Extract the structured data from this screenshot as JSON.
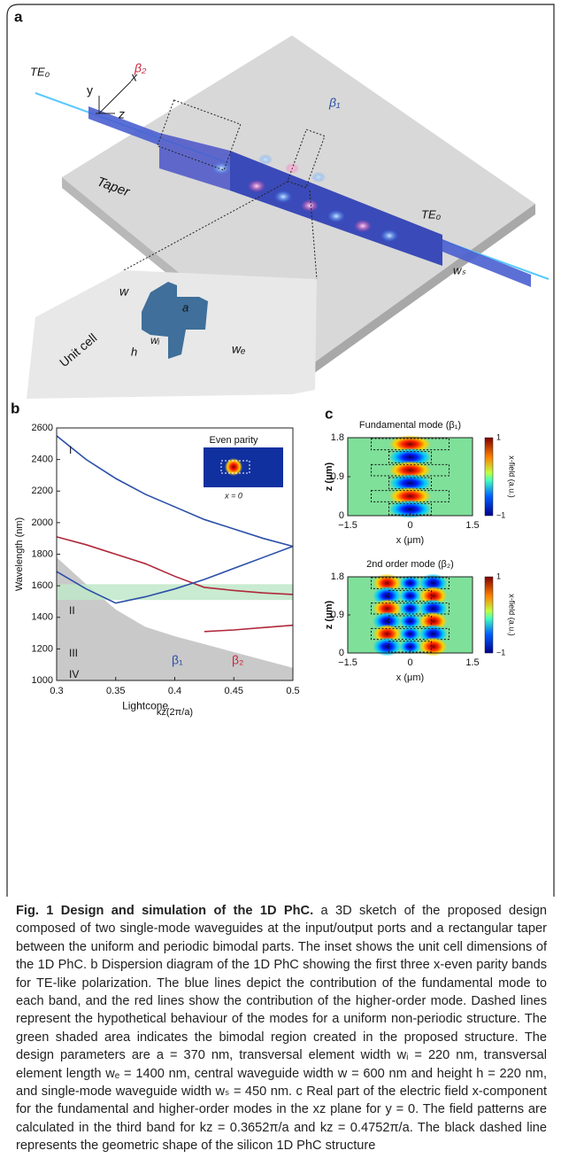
{
  "panel_a": {
    "label": "a",
    "te_in": "TE₀",
    "beta2": "β₂",
    "beta1": "β₁",
    "te_out": "TE₀",
    "axis_y": "y",
    "axis_x": "x",
    "axis_z": "z",
    "taper": "Taper",
    "ws": "wₛ",
    "unit_cell": "Unit cell",
    "w": "w",
    "a": "a",
    "wi": "wᵢ",
    "h": "h",
    "we": "wₑ"
  },
  "chart_data": [
    {
      "type": "line",
      "panel_label": "b",
      "xlabel": "kz(2π/a)",
      "ylabel": "Wavelength (nm)",
      "x": [
        0.3,
        0.325,
        0.35,
        0.375,
        0.4,
        0.425,
        0.45,
        0.475,
        0.5
      ],
      "xlim": [
        0.3,
        0.5
      ],
      "xticks": [
        0.3,
        0.35,
        0.4,
        0.45,
        0.5
      ],
      "ylim": [
        1000,
        2600
      ],
      "yticks": [
        1000,
        1200,
        1400,
        1600,
        1800,
        2000,
        2200,
        2400,
        2600
      ],
      "band": {
        "range": [
          1510,
          1610
        ],
        "color": "#bfe8c9"
      },
      "series": [
        {
          "name": "Lightcone",
          "kind": "area",
          "color": "#c9c9c9",
          "values": [
            1780,
            1610,
            1450,
            1340,
            1280,
            1230,
            1180,
            1130,
            1080
          ]
        },
        {
          "kind": "line",
          "color": "#2a4fa8",
          "values": [
            2550,
            2400,
            2280,
            2180,
            2100,
            2020,
            1960,
            1900,
            1850
          ]
        },
        {
          "kind": "line",
          "color": "#b0283a",
          "values": [
            1910,
            1860,
            1800,
            1740,
            1660,
            1590,
            1570,
            1555,
            1545
          ]
        },
        {
          "kind": "line",
          "color": "#2a4fa8",
          "values": [
            1690,
            1580,
            1490,
            1530,
            1580,
            1640,
            1710,
            1780,
            1850
          ]
        },
        {
          "kind": "line",
          "color": "#b0283a",
          "values": [
            null,
            null,
            null,
            null,
            null,
            1310,
            1320,
            1335,
            1350
          ]
        }
      ],
      "band_labels": [
        "I",
        "II",
        "III",
        "IV"
      ],
      "beta1": "β₁",
      "beta2": "β₂",
      "inset": {
        "title": "Even parity",
        "caption": "x = 0"
      }
    },
    {
      "type": "heatmap",
      "panel_label": "c",
      "mode": "fundamental",
      "title": "Fundamental mode (β₁)",
      "xlabel": "x (μm)",
      "ylabel": "z (μm)",
      "xlim": [
        -1.5,
        1.5
      ],
      "xticks": [
        {
          "value": -1.5,
          "label": "−1.5"
        },
        0,
        1.5
      ],
      "ylim": [
        0,
        1.8
      ],
      "yticks": [
        0,
        0.9,
        1.8
      ],
      "clim": [
        -1,
        1
      ],
      "cticks": [
        {
          "value": -1,
          "label": "−1"
        },
        1
      ],
      "colorbar_label": "x-field (a.u.)"
    },
    {
      "type": "heatmap",
      "mode": "second",
      "title": "2nd order mode (β₂)",
      "xlabel": "x (μm)",
      "ylabel": "z (μm)",
      "xlim": [
        -1.5,
        1.5
      ],
      "xticks": [
        {
          "value": -1.5,
          "label": "−1.5"
        },
        0,
        1.5
      ],
      "ylim": [
        0,
        1.8
      ],
      "yticks": [
        0,
        0.9,
        1.8
      ],
      "clim": [
        -1,
        1
      ],
      "cticks": [
        {
          "value": -1,
          "label": "−1"
        },
        1
      ],
      "colorbar_label": "x-field (a.u.)"
    }
  ],
  "caption": {
    "title": "Fig. 1 Design and simulation of the 1D PhC.",
    "body": "a 3D sketch of the proposed design composed of two single-mode waveguides at the input/output ports and a rectangular taper between the uniform and periodic bimodal parts. The inset shows the unit cell dimensions of the 1D PhC. b Dispersion diagram of the 1D PhC showing the first three x-even parity bands for TE-like polarization. The blue lines depict the contribution of the fundamental mode to each band, and the red lines show the contribution of the higher-order mode. Dashed lines represent the hypothetical behaviour of the modes for a uniform non-periodic structure. The green shaded area indicates the bimodal region created in the proposed structure. The design parameters are a = 370 nm, transversal element width wᵢ = 220 nm, transversal element length wₑ = 1400 nm, central waveguide width w = 600 nm and height h = 220 nm, and single-mode waveguide width wₛ = 450 nm. c Real part of the electric field x-component for the fundamental and higher-order modes in the xz plane for y = 0. The field patterns are calculated in the third band for kz = 0.3652π/a and kz = 0.4752π/a. The black dashed line represents the geometric shape of the silicon 1D PhC structure"
  }
}
